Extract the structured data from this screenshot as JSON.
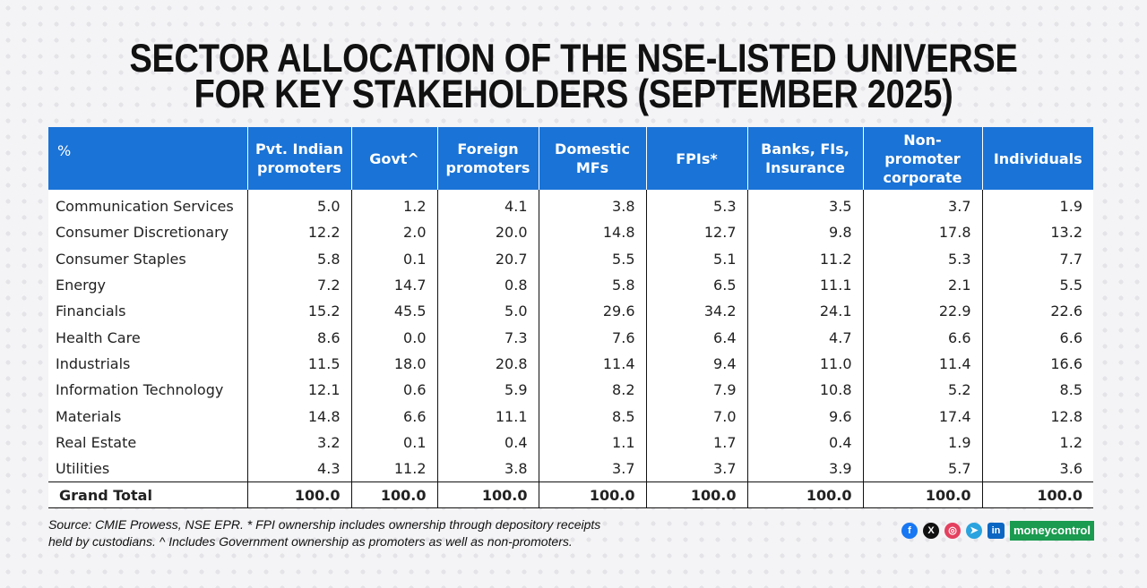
{
  "title_lines": [
    "SECTOR ALLOCATION OF THE NSE-LISTED UNIVERSE",
    "FOR KEY STAKEHOLDERS (SEPTEMBER 2025)"
  ],
  "chart_data": {
    "type": "table",
    "title": "SECTOR ALLOCATION OF THE NSE-LISTED UNIVERSE FOR KEY STAKEHOLDERS (SEPTEMBER 2025)",
    "corner_label": "%",
    "columns": [
      [
        "Pvt. Indian",
        "promoters"
      ],
      [
        "Govt^"
      ],
      [
        "Foreign",
        "promoters"
      ],
      [
        "Domestic",
        "MFs"
      ],
      [
        "FPIs*"
      ],
      [
        "Banks, FIs,",
        "Insurance"
      ],
      [
        "Non-",
        "promoter",
        "corporate"
      ],
      [
        "Individuals"
      ]
    ],
    "rows": [
      {
        "label": "Communication Services",
        "values": [
          "5.0",
          "1.2",
          "4.1",
          "3.8",
          "5.3",
          "3.5",
          "3.7",
          "1.9"
        ]
      },
      {
        "label": "Consumer Discretionary",
        "values": [
          "12.2",
          "2.0",
          "20.0",
          "14.8",
          "12.7",
          "9.8",
          "17.8",
          "13.2"
        ]
      },
      {
        "label": "Consumer Staples",
        "values": [
          "5.8",
          "0.1",
          "20.7",
          "5.5",
          "5.1",
          "11.2",
          "5.3",
          "7.7"
        ]
      },
      {
        "label": "Energy",
        "values": [
          "7.2",
          "14.7",
          "0.8",
          "5.8",
          "6.5",
          "11.1",
          "2.1",
          "5.5"
        ]
      },
      {
        "label": "Financials",
        "values": [
          "15.2",
          "45.5",
          "5.0",
          "29.6",
          "34.2",
          "24.1",
          "22.9",
          "22.6"
        ]
      },
      {
        "label": "Health Care",
        "values": [
          "8.6",
          "0.0",
          "7.3",
          "7.6",
          "6.4",
          "4.7",
          "6.6",
          "6.6"
        ]
      },
      {
        "label": "Industrials",
        "values": [
          "11.5",
          "18.0",
          "20.8",
          "11.4",
          "9.4",
          "11.0",
          "11.4",
          "16.6"
        ]
      },
      {
        "label": "Information Technology",
        "values": [
          "12.1",
          "0.6",
          "5.9",
          "8.2",
          "7.9",
          "10.8",
          "5.2",
          "8.5"
        ]
      },
      {
        "label": "Materials",
        "values": [
          "14.8",
          "6.6",
          "11.1",
          "8.5",
          "7.0",
          "9.6",
          "17.4",
          "12.8"
        ]
      },
      {
        "label": "Real Estate",
        "values": [
          "3.2",
          "0.1",
          "0.4",
          "1.1",
          "1.7",
          "0.4",
          "1.9",
          "1.2"
        ]
      },
      {
        "label": "Utilities",
        "values": [
          "4.3",
          "11.2",
          "3.8",
          "3.7",
          "3.7",
          "3.9",
          "5.7",
          "3.6"
        ]
      }
    ],
    "total": {
      "label": "Grand Total",
      "values": [
        "100.0",
        "100.0",
        "100.0",
        "100.0",
        "100.0",
        "100.0",
        "100.0",
        "100.0"
      ]
    }
  },
  "source_lines": [
    "Source: CMIE Prowess, NSE EPR. * FPI ownership includes ownership through depository receipts",
    "held by custodians. ^ Includes Government ownership as promoters as well as non-promoters."
  ],
  "social": [
    {
      "name": "facebook-icon",
      "glyph": "f"
    },
    {
      "name": "x-icon",
      "glyph": "X"
    },
    {
      "name": "instagram-icon",
      "glyph": "◎"
    },
    {
      "name": "telegram-icon",
      "glyph": "➤"
    },
    {
      "name": "linkedin-icon",
      "glyph": "in"
    }
  ],
  "brand": "moneycontrol",
  "colors": {
    "header_bg": "#1a73d6",
    "brand_green": "#1a9b4f"
  }
}
